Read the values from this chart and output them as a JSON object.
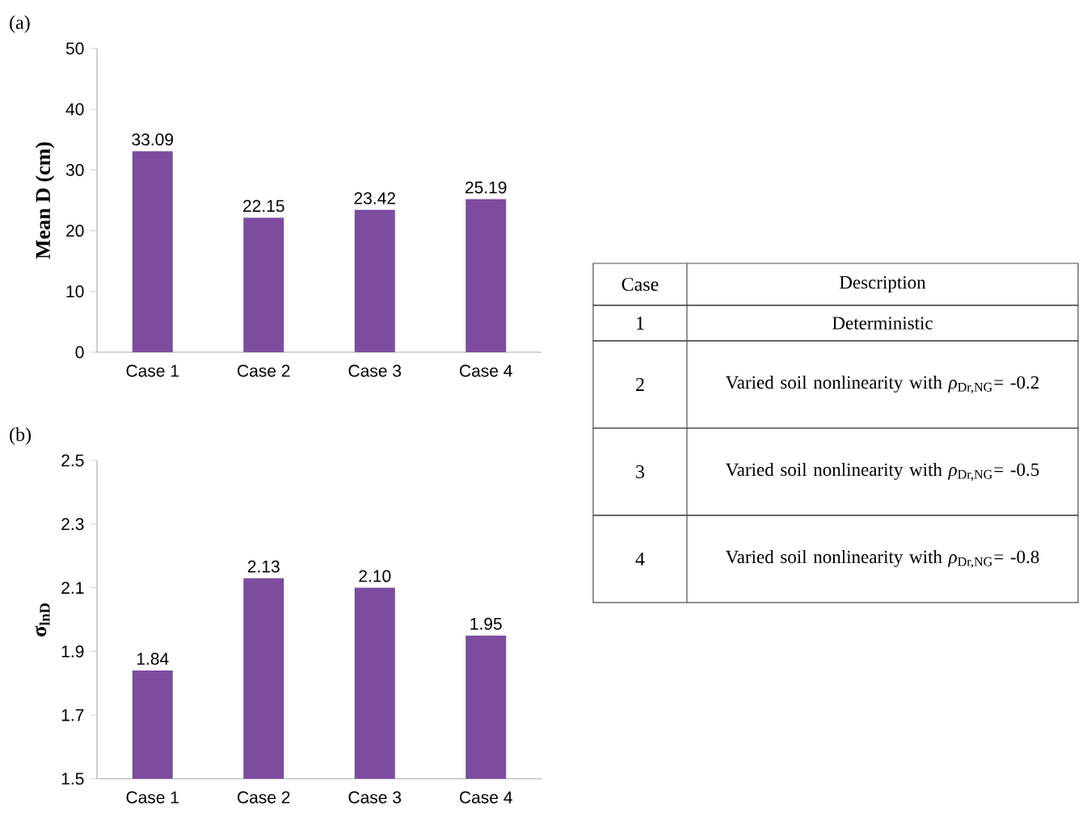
{
  "chart_data": [
    {
      "type": "bar",
      "title": "(a)",
      "ylabel": "Mean D (cm)",
      "categories": [
        "Case 1",
        "Case 2",
        "Case 3",
        "Case 4"
      ],
      "values": [
        33.09,
        22.15,
        23.42,
        25.19
      ],
      "value_labels": [
        "33.09",
        "22.15",
        "23.42",
        "25.19"
      ],
      "color": "#7d4c9f",
      "ylim": [
        0,
        50
      ],
      "yticks": [
        0,
        10,
        20,
        30,
        40,
        50
      ]
    },
    {
      "type": "bar",
      "title": "(b)",
      "ylabel": "σ$_{lnD}$",
      "categories": [
        "Case 1",
        "Case 2",
        "Case 3",
        "Case 4"
      ],
      "values": [
        1.84,
        2.13,
        2.1,
        1.95
      ],
      "value_labels": [
        "1.84",
        "2.13",
        "2.10",
        "1.95"
      ],
      "color": "#7d4c9f",
      "ylim": [
        1.5,
        2.5
      ],
      "yticks": [
        {
          "value": 1.5,
          "label": "1.5"
        },
        {
          "value": 1.7,
          "label": "1.7"
        },
        {
          "value": 1.9,
          "label": "1.9"
        },
        {
          "value": 2.1,
          "label": "2.1"
        },
        {
          "value": 2.3,
          "label": "2.3"
        },
        {
          "value": 2.5,
          "label": "2.5"
        }
      ]
    },
    {
      "type": "other",
      "annotations": [
        "Case",
        "Description",
        "1",
        "Deterministic",
        "2",
        "Varied soil nonlinearity with *ρ*$_{Dr,NG}$= -0.2",
        "3",
        "Varied soil nonlinearity with *ρ*$_{Dr,NG}$= -0.5",
        "4",
        "Varied soil nonlinearity with *ρ*$_{Dr,NG}$= -0.8"
      ]
    }
  ]
}
